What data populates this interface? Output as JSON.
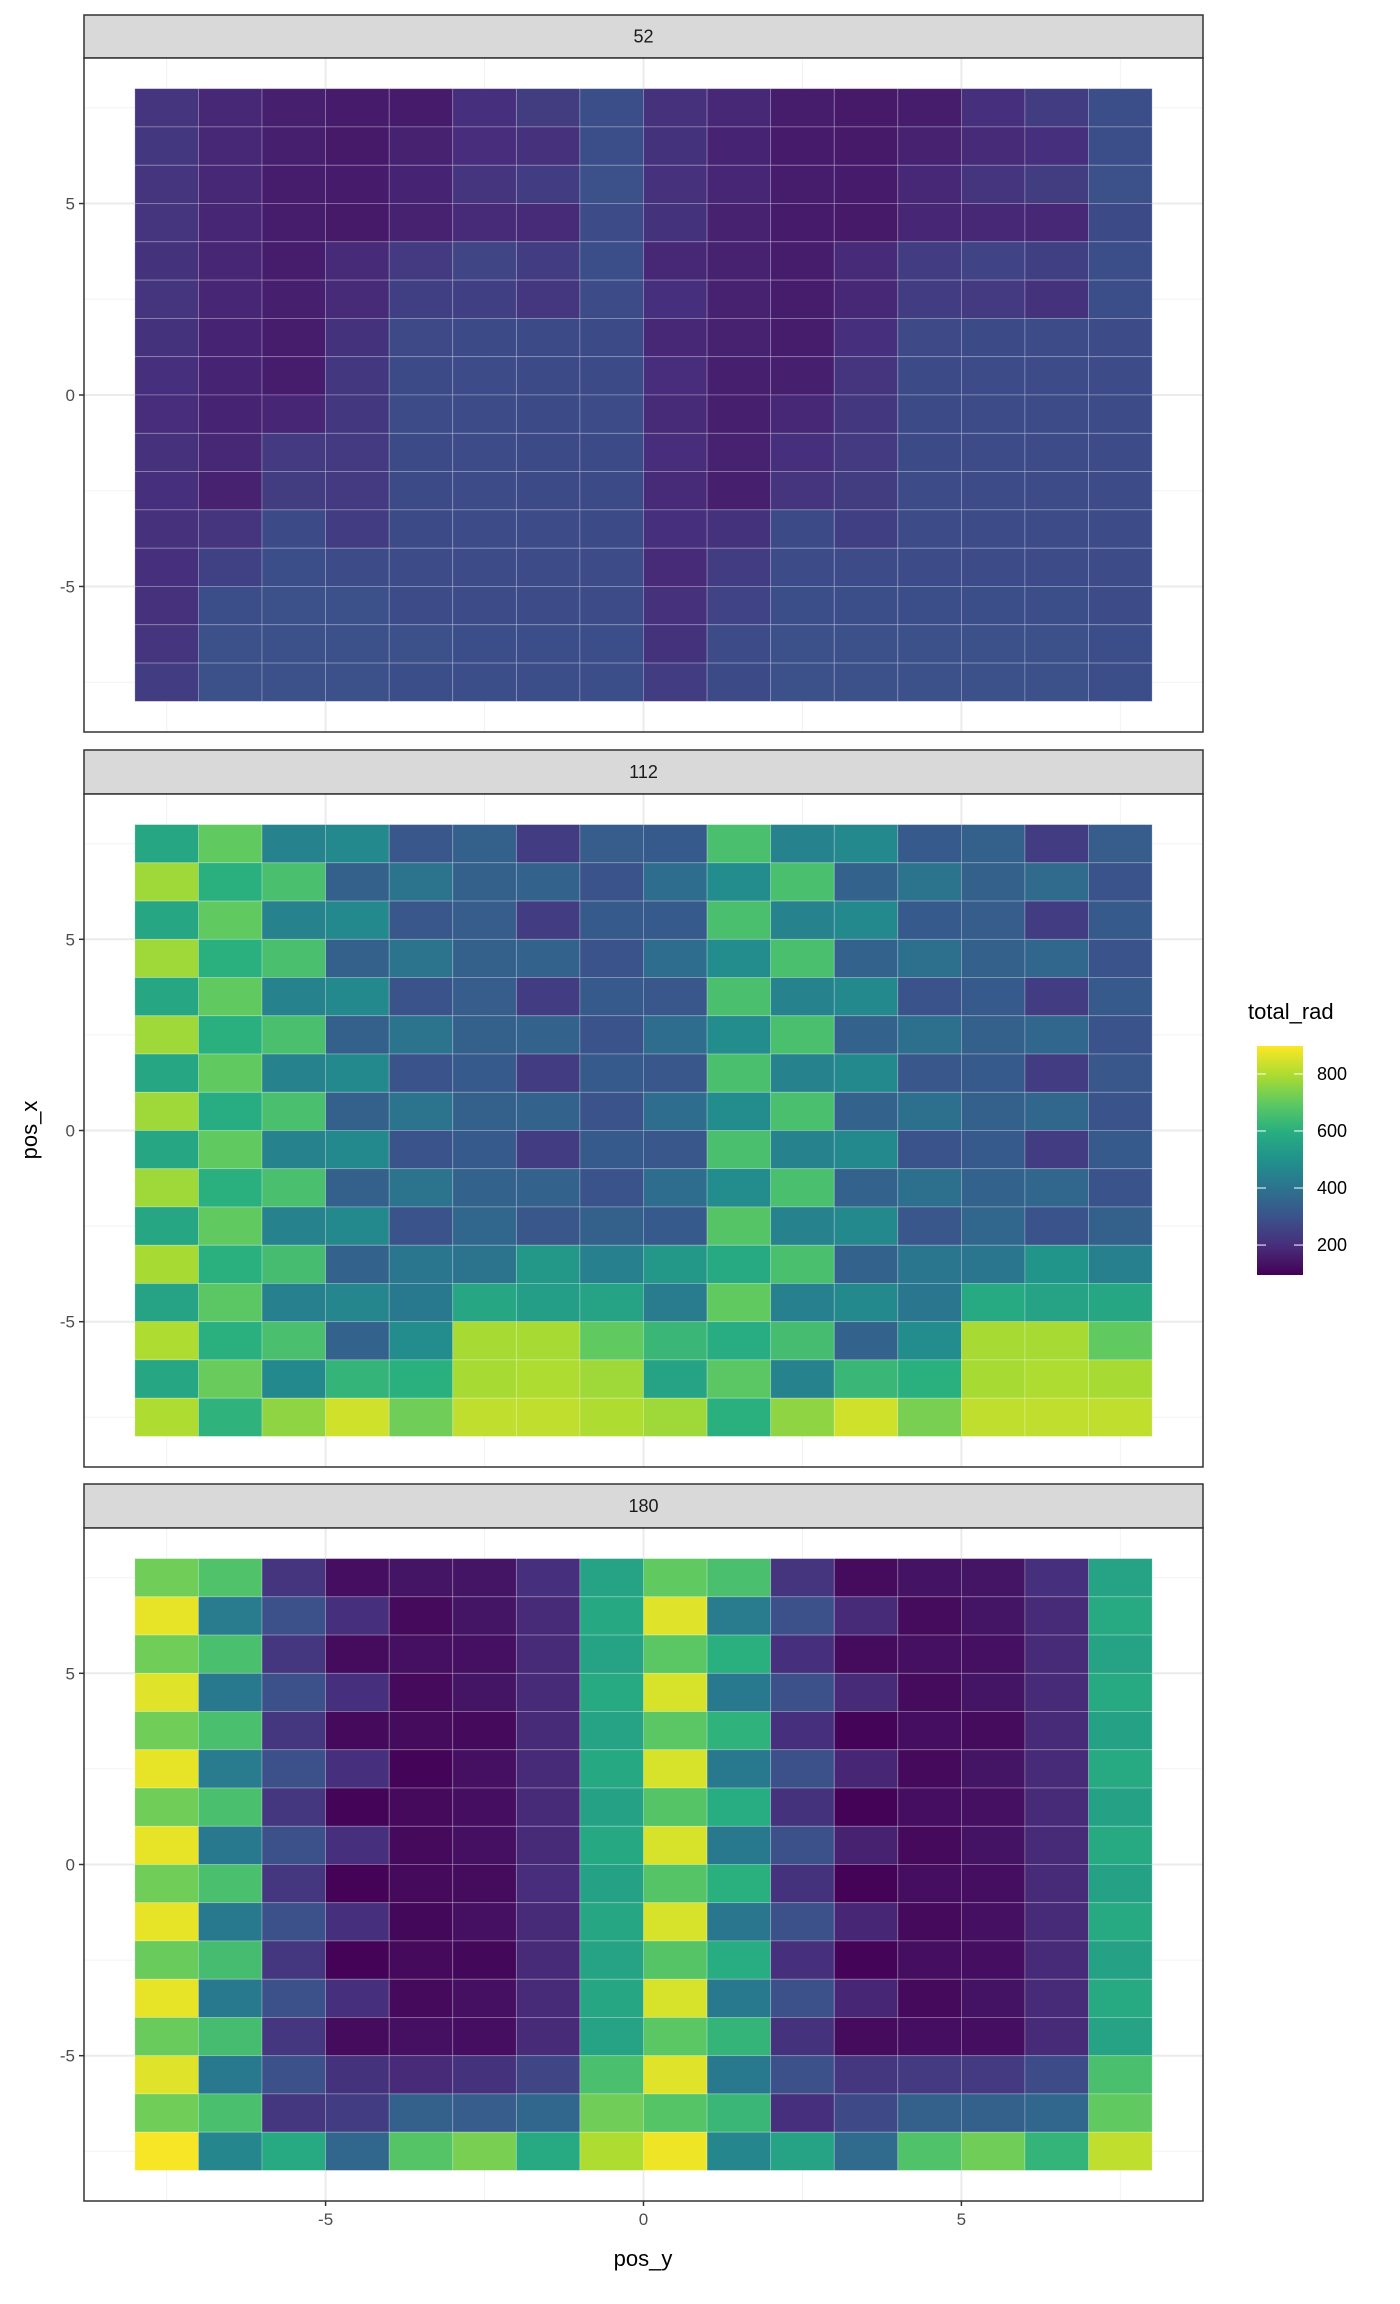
{
  "chart_data": {
    "type": "heatmap",
    "xlabel": "pos_y",
    "ylabel": "pos_x",
    "xlim": [
      -8.8,
      8.8
    ],
    "ylim": [
      -8.8,
      8.8
    ],
    "x_ticks": [
      "-5",
      "0",
      "5"
    ],
    "y_ticks": [
      "5",
      "0",
      "-5"
    ],
    "x_tick_values": [
      -5,
      0,
      5
    ],
    "y_tick_values": [
      5,
      0,
      -5
    ],
    "grid": true,
    "colorscale": "viridis",
    "legend": {
      "title": "total_rad",
      "position": "right",
      "ticks": [
        "800",
        "600",
        "400",
        "200"
      ],
      "tick_values": [
        800,
        600,
        400,
        200
      ],
      "range": [
        95,
        898
      ]
    },
    "x": [
      -7.5,
      -6.5,
      -5.5,
      -4.5,
      -3.5,
      -2.5,
      -1.5,
      -0.5,
      0.5,
      1.5,
      2.5,
      3.5,
      4.5,
      5.5,
      6.5,
      7.5
    ],
    "y": [
      7.5,
      6.5,
      5.5,
      4.5,
      3.5,
      2.5,
      1.5,
      0.5,
      -0.5,
      -1.5,
      -2.5,
      -3.5,
      -4.5,
      -5.5,
      -6.5,
      -7.5
    ],
    "facets": [
      {
        "label": "52",
        "values": [
          [
            215,
            185,
            165,
            155,
            155,
            200,
            235,
            285,
            205,
            185,
            160,
            150,
            160,
            200,
            240,
            285
          ],
          [
            225,
            185,
            165,
            150,
            170,
            195,
            205,
            285,
            210,
            175,
            155,
            150,
            170,
            190,
            200,
            285
          ],
          [
            215,
            185,
            160,
            155,
            175,
            215,
            240,
            290,
            205,
            180,
            160,
            155,
            185,
            215,
            235,
            290
          ],
          [
            215,
            180,
            160,
            150,
            170,
            190,
            190,
            280,
            210,
            170,
            155,
            150,
            180,
            185,
            185,
            275
          ],
          [
            210,
            180,
            160,
            190,
            230,
            260,
            240,
            285,
            185,
            170,
            160,
            190,
            240,
            255,
            245,
            285
          ],
          [
            215,
            180,
            165,
            190,
            245,
            245,
            220,
            280,
            200,
            170,
            160,
            185,
            240,
            230,
            210,
            285
          ],
          [
            210,
            175,
            160,
            210,
            270,
            275,
            275,
            275,
            185,
            170,
            160,
            200,
            270,
            275,
            280,
            280
          ],
          [
            200,
            175,
            160,
            225,
            275,
            280,
            275,
            275,
            195,
            165,
            165,
            215,
            275,
            280,
            280,
            280
          ],
          [
            195,
            175,
            180,
            225,
            280,
            280,
            275,
            280,
            190,
            165,
            185,
            225,
            275,
            280,
            280,
            280
          ],
          [
            205,
            185,
            230,
            230,
            275,
            280,
            275,
            275,
            195,
            170,
            200,
            230,
            275,
            280,
            280,
            280
          ],
          [
            200,
            170,
            235,
            230,
            275,
            280,
            275,
            275,
            190,
            165,
            215,
            235,
            280,
            280,
            280,
            280
          ],
          [
            205,
            215,
            275,
            240,
            275,
            280,
            280,
            275,
            200,
            210,
            275,
            245,
            280,
            280,
            280,
            280
          ],
          [
            200,
            250,
            285,
            280,
            280,
            280,
            280,
            280,
            190,
            240,
            280,
            280,
            280,
            280,
            280,
            280
          ],
          [
            205,
            285,
            290,
            290,
            280,
            280,
            280,
            280,
            205,
            255,
            285,
            285,
            285,
            285,
            285,
            280
          ],
          [
            215,
            290,
            290,
            290,
            290,
            285,
            285,
            285,
            210,
            280,
            290,
            290,
            290,
            290,
            290,
            285
          ],
          [
            240,
            290,
            290,
            290,
            285,
            285,
            285,
            285,
            240,
            275,
            290,
            290,
            290,
            290,
            290,
            285
          ]
        ]
      },
      {
        "label": "112",
        "values": [
          [
            570,
            700,
            450,
            470,
            310,
            340,
            240,
            330,
            320,
            660,
            450,
            470,
            320,
            340,
            240,
            330
          ],
          [
            780,
            600,
            660,
            340,
            400,
            340,
            350,
            300,
            380,
            480,
            660,
            350,
            400,
            340,
            370,
            300
          ],
          [
            570,
            700,
            450,
            470,
            310,
            330,
            240,
            320,
            320,
            660,
            450,
            470,
            320,
            330,
            240,
            320
          ],
          [
            780,
            600,
            660,
            340,
            400,
            340,
            350,
            300,
            380,
            480,
            660,
            350,
            390,
            340,
            360,
            300
          ],
          [
            570,
            700,
            450,
            470,
            300,
            330,
            240,
            320,
            310,
            660,
            450,
            470,
            300,
            320,
            240,
            320
          ],
          [
            780,
            600,
            660,
            340,
            400,
            340,
            350,
            300,
            380,
            480,
            660,
            350,
            390,
            340,
            360,
            300
          ],
          [
            570,
            700,
            450,
            470,
            300,
            320,
            240,
            320,
            310,
            660,
            450,
            470,
            310,
            320,
            240,
            310
          ],
          [
            780,
            590,
            660,
            340,
            400,
            340,
            350,
            300,
            380,
            480,
            660,
            350,
            390,
            340,
            360,
            300
          ],
          [
            570,
            700,
            450,
            470,
            300,
            320,
            240,
            320,
            310,
            660,
            450,
            470,
            300,
            320,
            240,
            320
          ],
          [
            780,
            600,
            660,
            340,
            400,
            350,
            350,
            300,
            380,
            480,
            660,
            350,
            390,
            350,
            360,
            300
          ],
          [
            570,
            700,
            450,
            470,
            300,
            360,
            310,
            340,
            320,
            680,
            450,
            470,
            310,
            360,
            300,
            340
          ],
          [
            790,
            600,
            650,
            350,
            410,
            400,
            520,
            440,
            520,
            580,
            660,
            350,
            410,
            410,
            510,
            440
          ],
          [
            560,
            690,
            440,
            460,
            420,
            570,
            540,
            560,
            430,
            700,
            440,
            470,
            410,
            580,
            560,
            570
          ],
          [
            800,
            600,
            660,
            350,
            480,
            790,
            790,
            700,
            630,
            590,
            650,
            350,
            480,
            790,
            790,
            700
          ],
          [
            570,
            710,
            470,
            620,
            600,
            790,
            800,
            780,
            560,
            690,
            450,
            630,
            600,
            790,
            800,
            790
          ],
          [
            800,
            610,
            760,
            840,
            720,
            820,
            820,
            800,
            780,
            600,
            760,
            840,
            730,
            820,
            820,
            820
          ]
        ]
      },
      {
        "label": "180",
        "values": [
          [
            720,
            670,
            215,
            125,
            140,
            140,
            200,
            560,
            700,
            660,
            215,
            120,
            135,
            140,
            200,
            560
          ],
          [
            870,
            430,
            290,
            200,
            115,
            140,
            190,
            575,
            860,
            430,
            290,
            190,
            120,
            140,
            190,
            580
          ],
          [
            720,
            660,
            220,
            120,
            130,
            130,
            190,
            560,
            690,
            600,
            200,
            120,
            130,
            130,
            190,
            560
          ],
          [
            860,
            420,
            290,
            200,
            115,
            140,
            190,
            580,
            850,
            420,
            290,
            190,
            120,
            140,
            190,
            580
          ],
          [
            720,
            660,
            220,
            115,
            120,
            115,
            190,
            560,
            690,
            610,
            200,
            105,
            125,
            120,
            190,
            555
          ],
          [
            870,
            430,
            290,
            200,
            105,
            130,
            190,
            575,
            850,
            420,
            290,
            180,
            115,
            140,
            190,
            580
          ],
          [
            720,
            660,
            220,
            105,
            115,
            125,
            190,
            555,
            680,
            590,
            210,
            100,
            125,
            130,
            190,
            555
          ],
          [
            870,
            420,
            290,
            200,
            115,
            130,
            190,
            575,
            850,
            420,
            290,
            170,
            115,
            135,
            190,
            580
          ],
          [
            720,
            660,
            220,
            100,
            115,
            120,
            195,
            555,
            680,
            600,
            210,
            100,
            125,
            125,
            190,
            555
          ],
          [
            870,
            420,
            290,
            200,
            110,
            130,
            190,
            570,
            850,
            410,
            290,
            180,
            115,
            130,
            190,
            580
          ],
          [
            710,
            650,
            220,
            100,
            115,
            110,
            190,
            560,
            680,
            590,
            200,
            105,
            125,
            125,
            190,
            555
          ],
          [
            870,
            420,
            290,
            200,
            115,
            130,
            190,
            570,
            850,
            420,
            290,
            180,
            115,
            135,
            190,
            580
          ],
          [
            710,
            650,
            220,
            120,
            130,
            125,
            190,
            560,
            690,
            620,
            210,
            120,
            125,
            125,
            190,
            560
          ],
          [
            860,
            420,
            290,
            210,
            190,
            210,
            260,
            660,
            860,
            420,
            290,
            220,
            230,
            230,
            280,
            660
          ],
          [
            720,
            660,
            220,
            240,
            340,
            330,
            360,
            720,
            680,
            630,
            200,
            270,
            340,
            340,
            360,
            700
          ],
          [
            890,
            460,
            580,
            360,
            680,
            730,
            580,
            800,
            880,
            460,
            560,
            370,
            670,
            720,
            620,
            820
          ]
        ]
      }
    ]
  }
}
